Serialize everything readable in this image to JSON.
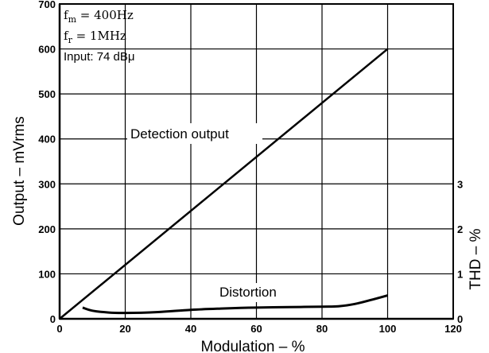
{
  "chart_data": {
    "type": "line",
    "xlabel": "Modulation – %",
    "ylabel_left": "Output – mVrms",
    "ylabel_right": "THD – %",
    "xlim": [
      0,
      120
    ],
    "ylim_left": [
      0,
      700
    ],
    "ylim_right": [
      0,
      3
    ],
    "x_ticks": [
      0,
      20,
      40,
      60,
      80,
      100,
      120
    ],
    "y_left_ticks": [
      0,
      100,
      200,
      300,
      400,
      500,
      600,
      700
    ],
    "y_right_ticks": [
      0,
      1,
      2,
      3
    ],
    "grid": true,
    "conditions": {
      "fm": "f",
      "fm_sub": "m",
      "fm_value": " = 400Hz",
      "fr": "f",
      "fr_sub": "r",
      "fr_value": " = 1MHz",
      "input": "Input: 74 dBμ"
    },
    "series": [
      {
        "name": "Detection output",
        "axis": "left",
        "x": [
          0,
          100
        ],
        "y": [
          0,
          600
        ]
      },
      {
        "name": "Distortion",
        "axis": "right",
        "x": [
          7,
          10,
          15,
          20,
          30,
          40,
          50,
          60,
          70,
          80,
          85,
          90,
          95,
          100
        ],
        "y": [
          0.25,
          0.18,
          0.14,
          0.13,
          0.15,
          0.2,
          0.23,
          0.25,
          0.26,
          0.27,
          0.28,
          0.33,
          0.42,
          0.52
        ]
      }
    ]
  }
}
